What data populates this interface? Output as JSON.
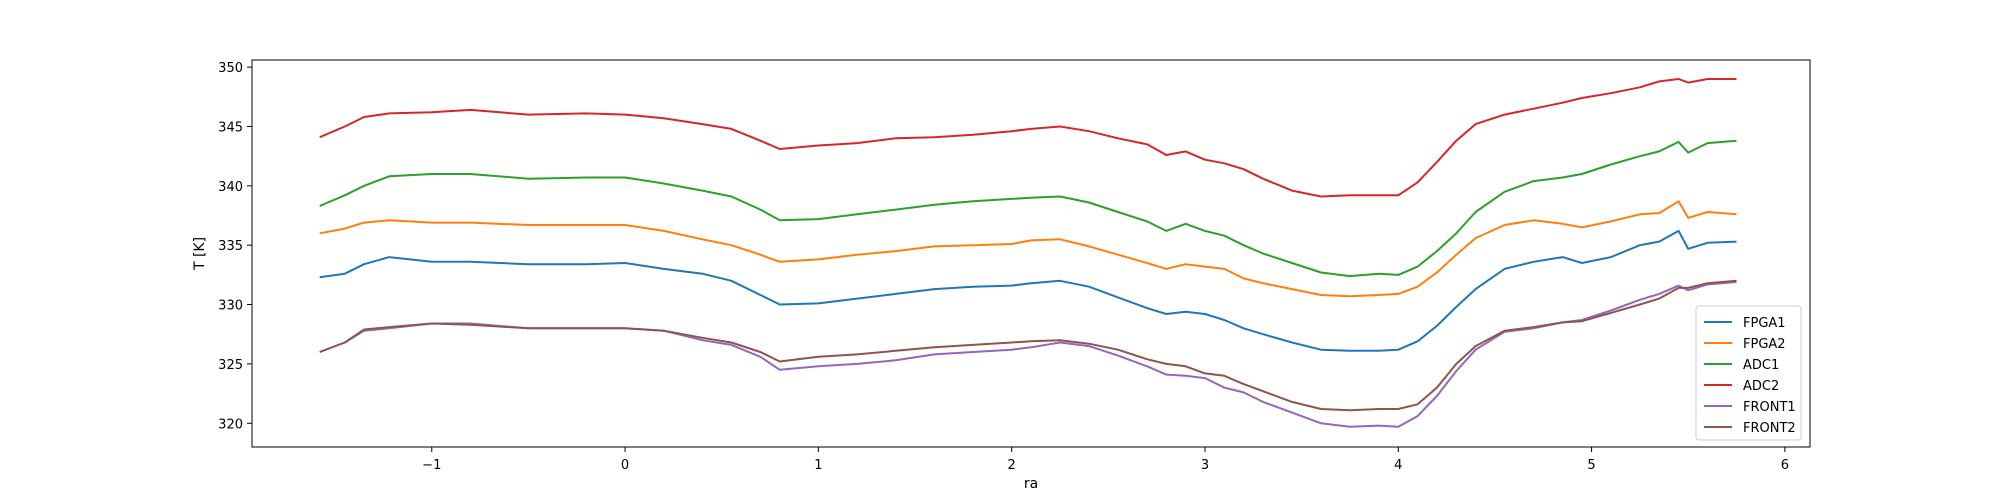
{
  "chart_data": {
    "type": "line",
    "title": "",
    "xlabel": "ra",
    "ylabel": "T [K]",
    "xlim": [
      -1.93,
      6.13
    ],
    "ylim": [
      318.0,
      350.6
    ],
    "xticks": [
      -1,
      0,
      1,
      2,
      3,
      4,
      5,
      6
    ],
    "xtick_labels": [
      "−1",
      "0",
      "1",
      "2",
      "3",
      "4",
      "5",
      "6"
    ],
    "yticks": [
      320,
      325,
      330,
      335,
      340,
      345,
      350
    ],
    "ytick_labels": [
      "320",
      "325",
      "330",
      "335",
      "340",
      "345",
      "350"
    ],
    "grid": false,
    "legend_position": "lower-right",
    "x": [
      -1.58,
      -1.45,
      -1.35,
      -1.22,
      -1.0,
      -0.8,
      -0.5,
      -0.2,
      0.0,
      0.2,
      0.4,
      0.55,
      0.7,
      0.8,
      1.0,
      1.2,
      1.4,
      1.6,
      1.8,
      2.0,
      2.1,
      2.25,
      2.4,
      2.55,
      2.7,
      2.8,
      2.9,
      3.0,
      3.1,
      3.2,
      3.3,
      3.45,
      3.6,
      3.75,
      3.9,
      4.0,
      4.1,
      4.2,
      4.3,
      4.4,
      4.55,
      4.7,
      4.85,
      4.95,
      5.1,
      5.25,
      5.35,
      5.45,
      5.5,
      5.6,
      5.75
    ],
    "series": [
      {
        "name": "FPGA1",
        "color": "#1f77b4",
        "values": [
          332.3,
          332.6,
          333.4,
          334.0,
          333.6,
          333.6,
          333.4,
          333.4,
          333.5,
          333.0,
          332.6,
          332.0,
          330.8,
          330.0,
          330.1,
          330.5,
          330.9,
          331.3,
          331.5,
          331.6,
          331.8,
          332.0,
          331.5,
          330.6,
          329.7,
          329.2,
          329.4,
          329.2,
          328.7,
          328.0,
          327.5,
          326.8,
          326.2,
          326.1,
          326.1,
          326.2,
          326.9,
          328.2,
          329.8,
          331.3,
          333.0,
          333.6,
          334.0,
          333.5,
          334.0,
          335.0,
          335.3,
          336.2,
          334.7,
          335.2,
          335.3
        ]
      },
      {
        "name": "FPGA2",
        "color": "#ff7f0e",
        "values": [
          336.0,
          336.4,
          336.9,
          337.1,
          336.9,
          336.9,
          336.7,
          336.7,
          336.7,
          336.2,
          335.5,
          335.0,
          334.2,
          333.6,
          333.8,
          334.2,
          334.5,
          334.9,
          335.0,
          335.1,
          335.4,
          335.5,
          334.9,
          334.2,
          333.5,
          333.0,
          333.4,
          333.2,
          333.0,
          332.2,
          331.8,
          331.3,
          330.8,
          330.7,
          330.8,
          330.9,
          331.5,
          332.7,
          334.2,
          335.6,
          336.7,
          337.1,
          336.8,
          336.5,
          337.0,
          337.6,
          337.7,
          338.7,
          337.3,
          337.8,
          337.6
        ]
      },
      {
        "name": "ADC1",
        "color": "#2ca02c",
        "values": [
          338.3,
          339.2,
          340.0,
          340.8,
          341.0,
          341.0,
          340.6,
          340.7,
          340.7,
          340.2,
          339.6,
          339.1,
          338.0,
          337.1,
          337.2,
          337.6,
          338.0,
          338.4,
          338.7,
          338.9,
          339.0,
          339.1,
          338.6,
          337.8,
          337.0,
          336.2,
          336.8,
          336.2,
          335.8,
          335.0,
          334.3,
          333.5,
          332.7,
          332.4,
          332.6,
          332.5,
          333.2,
          334.5,
          336.0,
          337.8,
          339.5,
          340.4,
          340.7,
          341.0,
          341.8,
          342.5,
          342.9,
          343.7,
          342.8,
          343.6,
          343.8
        ]
      },
      {
        "name": "ADC2",
        "color": "#d62728",
        "values": [
          344.1,
          345.0,
          345.8,
          346.1,
          346.2,
          346.4,
          346.0,
          346.1,
          346.0,
          345.7,
          345.2,
          344.8,
          343.8,
          343.1,
          343.4,
          343.6,
          344.0,
          344.1,
          344.3,
          344.6,
          344.8,
          345.0,
          344.6,
          344.0,
          343.5,
          342.6,
          342.9,
          342.2,
          341.9,
          341.4,
          340.6,
          339.6,
          339.1,
          339.2,
          339.2,
          339.2,
          340.3,
          342.0,
          343.8,
          345.2,
          346.0,
          346.5,
          347.0,
          347.4,
          347.8,
          348.3,
          348.8,
          349.0,
          348.7,
          349.0,
          349.0
        ]
      },
      {
        "name": "FRONT1",
        "color": "#9467bd",
        "values": [
          326.0,
          326.8,
          327.8,
          328.0,
          328.4,
          328.4,
          328.0,
          328.0,
          328.0,
          327.8,
          327.0,
          326.6,
          325.6,
          324.5,
          324.8,
          325.0,
          325.3,
          325.8,
          326.0,
          326.2,
          326.4,
          326.8,
          326.5,
          325.7,
          324.8,
          324.1,
          324.0,
          323.8,
          323.0,
          322.6,
          321.8,
          320.9,
          320.0,
          319.7,
          319.8,
          319.7,
          320.6,
          322.3,
          324.4,
          326.2,
          327.7,
          328.0,
          328.5,
          328.7,
          329.5,
          330.4,
          330.9,
          331.6,
          331.2,
          331.7,
          331.9
        ]
      },
      {
        "name": "FRONT2",
        "color": "#8c564b",
        "values": [
          326.0,
          326.8,
          327.9,
          328.1,
          328.4,
          328.3,
          328.0,
          328.0,
          328.0,
          327.8,
          327.2,
          326.8,
          326.0,
          325.2,
          325.6,
          325.8,
          326.1,
          326.4,
          326.6,
          326.8,
          326.9,
          327.0,
          326.7,
          326.2,
          325.4,
          325.0,
          324.8,
          324.2,
          324.0,
          323.3,
          322.7,
          321.8,
          321.2,
          321.1,
          321.2,
          321.2,
          321.6,
          323.0,
          325.0,
          326.5,
          327.8,
          328.1,
          328.5,
          328.6,
          329.3,
          330.0,
          330.5,
          331.4,
          331.4,
          331.8,
          332.0
        ]
      }
    ]
  }
}
